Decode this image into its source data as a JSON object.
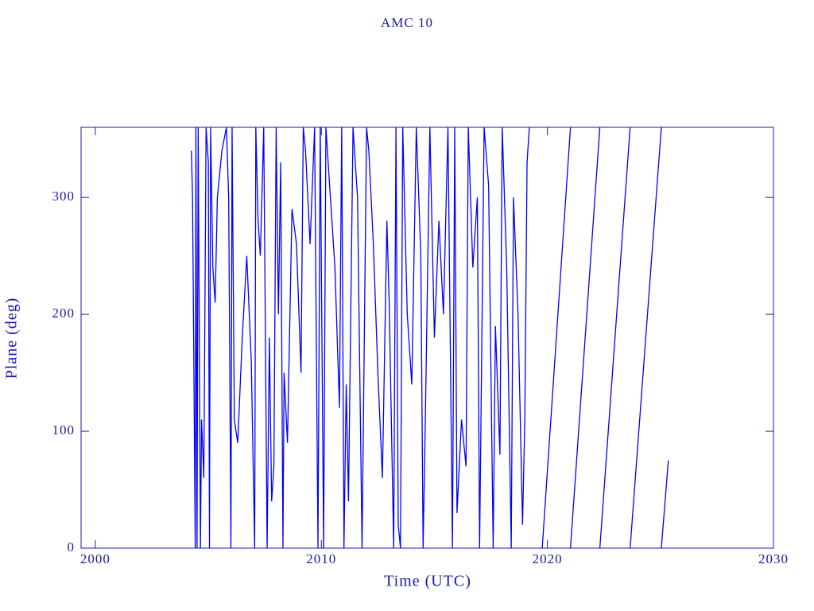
{
  "chart_data": {
    "type": "line",
    "title": "AMC 10",
    "x_label": "Time (UTC)",
    "y_label": "Plane (deg)",
    "xlim": [
      1999.37,
      2030
    ],
    "ylim": [
      0,
      360
    ],
    "xticks": [
      2000,
      2010,
      2020,
      2030
    ],
    "yticks": [
      0,
      100,
      200,
      300
    ],
    "series": [
      {
        "color": "#0000ff",
        "x": [
          2004.25,
          2004.3,
          2004.35,
          2004.42,
          2004.45,
          2004.5,
          2004.55,
          2004.65,
          2004.7,
          2004.8,
          2004.9,
          2005.0,
          2005.05,
          2005.1,
          2005.2,
          2005.3,
          2005.4,
          2005.6,
          2005.8,
          2005.9,
          2006.0,
          2006.05,
          2006.15,
          2006.3,
          2006.5,
          2006.7,
          2006.9,
          2007.05,
          2007.1,
          2007.2,
          2007.3,
          2007.45,
          2007.6,
          2007.7,
          2007.8,
          2007.9,
          2008.0,
          2008.1,
          2008.2,
          2008.3,
          2008.35,
          2008.5,
          2008.7,
          2008.9,
          2009.1,
          2009.2,
          2009.3,
          2009.5,
          2009.7,
          2009.85,
          2009.95,
          2010.1,
          2010.2,
          2010.4,
          2010.6,
          2010.8,
          2010.9,
          2011.0,
          2011.1,
          2011.2,
          2011.4,
          2011.6,
          2011.8,
          2012.0,
          2012.1,
          2012.3,
          2012.5,
          2012.7,
          2012.9,
          2013.0,
          2013.2,
          2013.3,
          2013.4,
          2013.5,
          2013.6,
          2013.8,
          2014.0,
          2014.2,
          2014.4,
          2014.5,
          2014.6,
          2014.8,
          2015.0,
          2015.2,
          2015.4,
          2015.6,
          2015.8,
          2015.9,
          2016.0,
          2016.2,
          2016.4,
          2016.5,
          2016.7,
          2016.9,
          2017.0,
          2017.2,
          2017.4,
          2017.6,
          2017.7,
          2017.9,
          2018.0,
          2018.2,
          2018.4,
          2018.5,
          2018.7,
          2018.9,
          2019.0,
          2019.1,
          2019.2,
          null,
          2019.77,
          2021.02,
          null,
          2021.02,
          2022.32,
          null,
          2022.32,
          2023.66,
          null,
          2023.66,
          2025.04,
          null,
          2025.04,
          2025.35
        ],
        "values": [
          340,
          300,
          180,
          0,
          360,
          0,
          360,
          0,
          110,
          60,
          360,
          330,
          0,
          360,
          240,
          210,
          300,
          340,
          360,
          300,
          0,
          360,
          110,
          90,
          180,
          250,
          160,
          0,
          360,
          280,
          250,
          360,
          0,
          180,
          40,
          70,
          360,
          200,
          330,
          0,
          150,
          90,
          290,
          260,
          150,
          360,
          340,
          260,
          360,
          0,
          360,
          0,
          360,
          300,
          240,
          120,
          360,
          0,
          140,
          40,
          360,
          300,
          0,
          360,
          340,
          260,
          150,
          60,
          280,
          210,
          0,
          360,
          20,
          0,
          360,
          200,
          140,
          360,
          250,
          0,
          110,
          360,
          180,
          280,
          200,
          360,
          0,
          360,
          30,
          110,
          70,
          360,
          240,
          300,
          0,
          360,
          310,
          0,
          190,
          80,
          360,
          240,
          0,
          300,
          200,
          20,
          110,
          330,
          360,
          null,
          0,
          360,
          null,
          0,
          360,
          null,
          0,
          360,
          null,
          0,
          360,
          null,
          0,
          75
        ]
      }
    ]
  }
}
